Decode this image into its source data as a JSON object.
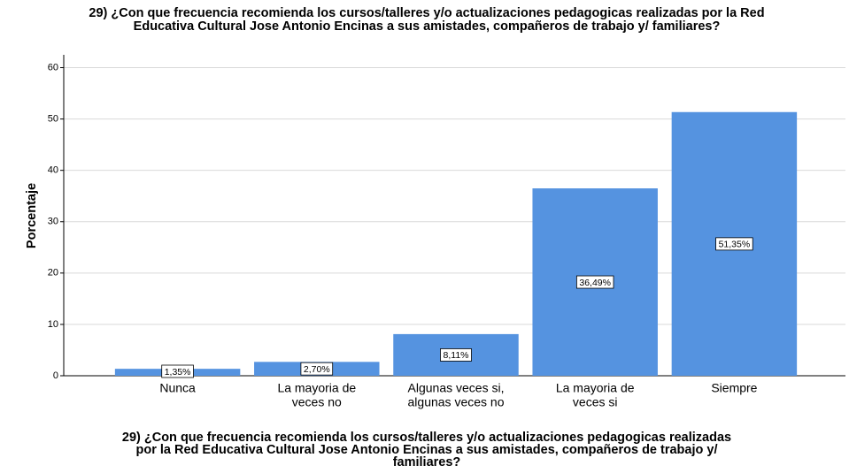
{
  "chart_data": {
    "type": "bar",
    "title": [
      "29) ¿Con que frecuencia recomienda los cursos/talleres y/o actualizaciones pedagogicas realizadas por la Red",
      "Educativa Cultural Jose Antonio Encinas a sus amistades, compañeros de trabajo y/ familiares?"
    ],
    "x_label": [
      "29) ¿Con que frecuencia recomienda los cursos/talleres y/o actualizaciones pedagogicas realizadas",
      "por la Red Educativa Cultural Jose Antonio Encinas a sus amistades, compañeros de trabajo y/",
      "familiares?"
    ],
    "y_label": "Porcentaje",
    "categories": [
      [
        "Nunca"
      ],
      [
        "La mayoria de",
        "veces no"
      ],
      [
        "Algunas veces si,",
        "algunas veces no"
      ],
      [
        "La mayoria de",
        "veces si"
      ],
      [
        "Siempre"
      ]
    ],
    "values": [
      1.35,
      2.7,
      8.11,
      36.49,
      51.35
    ],
    "value_labels": [
      "1,35%",
      "2,70%",
      "8,11%",
      "36,49%",
      "51,35%"
    ],
    "color": "#5593e0",
    "ylim": [
      0,
      62.5
    ],
    "yticks": [
      0,
      10,
      20,
      30,
      40,
      50,
      60
    ],
    "grid": true
  }
}
